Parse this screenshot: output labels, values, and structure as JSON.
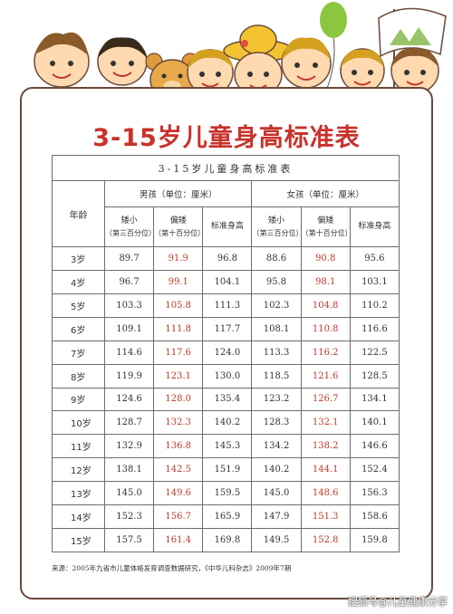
{
  "title": "3-15岁儿童身高标准表",
  "table": {
    "caption": "3-15岁儿童身高标准表",
    "age_header": "年龄",
    "boys_header": "男孩（单位：厘米）",
    "girls_header": "女孩（单位：厘米）",
    "col1_main": "矮小",
    "col1_sub": "（第三百分位）",
    "col2_main": "偏矮",
    "col2_sub": "（第十百分位）",
    "col3_main": "标准身高",
    "rows": [
      {
        "age": "3岁",
        "b1": "89.7",
        "b2": "91.9",
        "b3": "96.8",
        "g1": "88.6",
        "g2": "90.8",
        "g3": "95.6"
      },
      {
        "age": "4岁",
        "b1": "96.7",
        "b2": "99.1",
        "b3": "104.1",
        "g1": "95.8",
        "g2": "98.1",
        "g3": "103.1"
      },
      {
        "age": "5岁",
        "b1": "103.3",
        "b2": "105.8",
        "b3": "111.3",
        "g1": "102.3",
        "g2": "104.8",
        "g3": "110.2"
      },
      {
        "age": "6岁",
        "b1": "109.1",
        "b2": "111.8",
        "b3": "117.7",
        "g1": "108.1",
        "g2": "110.8",
        "g3": "116.6"
      },
      {
        "age": "7岁",
        "b1": "114.6",
        "b2": "117.6",
        "b3": "124.0",
        "g1": "113.3",
        "g2": "116.2",
        "g3": "122.5"
      },
      {
        "age": "8岁",
        "b1": "119.9",
        "b2": "123.1",
        "b3": "130.0",
        "g1": "118.5",
        "g2": "121.6",
        "g3": "128.5"
      },
      {
        "age": "9岁",
        "b1": "124.6",
        "b2": "128.0",
        "b3": "135.4",
        "g1": "123.2",
        "g2": "126.7",
        "g3": "134.1"
      },
      {
        "age": "10岁",
        "b1": "128.7",
        "b2": "132.3",
        "b3": "140.2",
        "g1": "128.3",
        "g2": "132.1",
        "g3": "140.1"
      },
      {
        "age": "11岁",
        "b1": "132.9",
        "b2": "136.8",
        "b3": "145.3",
        "g1": "134.2",
        "g2": "138.2",
        "g3": "146.6"
      },
      {
        "age": "12岁",
        "b1": "138.1",
        "b2": "142.5",
        "b3": "151.9",
        "g1": "140.2",
        "g2": "144.1",
        "g3": "152.4"
      },
      {
        "age": "13岁",
        "b1": "145.0",
        "b2": "149.6",
        "b3": "159.5",
        "g1": "145.0",
        "g2": "148.6",
        "g3": "156.3"
      },
      {
        "age": "14岁",
        "b1": "152.3",
        "b2": "156.7",
        "b3": "165.9",
        "g1": "147.9",
        "g2": "151.3",
        "g3": "158.6"
      },
      {
        "age": "15岁",
        "b1": "157.5",
        "b2": "161.4",
        "b3": "169.8",
        "g1": "149.5",
        "g2": "152.8",
        "g3": "159.8"
      }
    ]
  },
  "source": "来源：2005年九省市儿童体格发育调查数据研究，《中华儿科杂志》2009年7期",
  "watermark": "搜狐号@儿童健康分享",
  "colors": {
    "title": "#c8322b",
    "highlight": "#c0392b",
    "border": "#6b4a3a"
  }
}
